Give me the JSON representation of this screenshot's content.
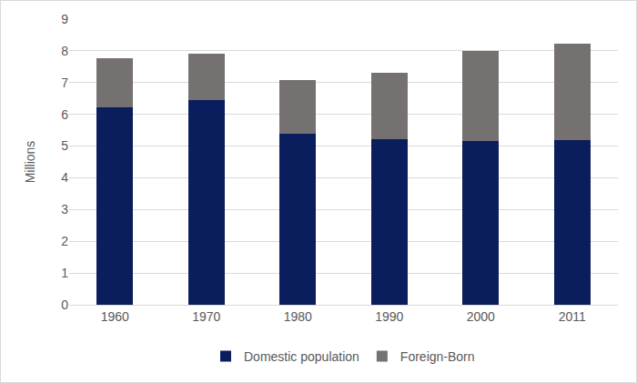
{
  "chart_data": {
    "type": "bar",
    "stacked": true,
    "categories": [
      "1960",
      "1970",
      "1980",
      "1990",
      "2000",
      "2011"
    ],
    "series": [
      {
        "name": "Domestic population",
        "color": "#0a1d5c",
        "values": [
          6.23,
          6.45,
          5.4,
          5.23,
          5.15,
          5.18
        ]
      },
      {
        "name": "Foreign-Born",
        "color": "#767171",
        "values": [
          1.55,
          1.45,
          1.67,
          2.09,
          2.85,
          3.06
        ]
      }
    ],
    "y_label": "Millions",
    "ylim": [
      0,
      9
    ],
    "yticks": [
      0,
      1,
      2,
      3,
      4,
      5,
      6,
      7,
      8,
      9
    ],
    "grid": true,
    "legend": "bottom"
  }
}
